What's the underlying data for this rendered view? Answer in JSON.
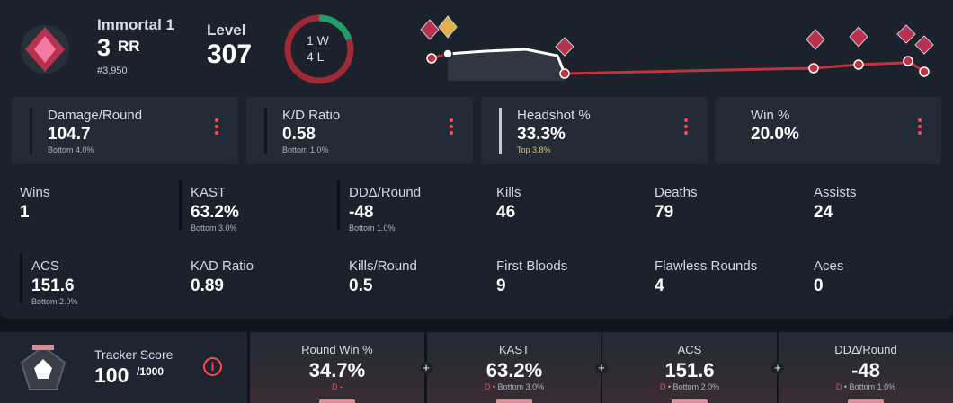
{
  "header": {
    "rank": "Immortal 1",
    "rr": "3",
    "rr_unit": "RR",
    "leaderboard": "#3,950",
    "level_label": "Level",
    "level": "307",
    "wins": "1 W",
    "losses": "4 L"
  },
  "cards": [
    {
      "label": "Damage/Round",
      "value": "104.7",
      "percentile": "Bottom 4.0%"
    },
    {
      "label": "K/D Ratio",
      "value": "0.58",
      "percentile": "Bottom 1.0%"
    },
    {
      "label": "Headshot %",
      "value": "33.3%",
      "percentile": "Top 3.8%"
    },
    {
      "label": "Win %",
      "value": "20.0%",
      "percentile": ""
    }
  ],
  "stats": [
    [
      {
        "label": "Wins",
        "value": "1"
      },
      {
        "label": "KAST",
        "value": "63.2%",
        "percentile": "Bottom 3.0%"
      },
      {
        "label": "DDΔ/Round",
        "value": "-48",
        "percentile": "Bottom 1.0%"
      },
      {
        "label": "Kills",
        "value": "46"
      },
      {
        "label": "Deaths",
        "value": "79"
      },
      {
        "label": "Assists",
        "value": "24"
      }
    ],
    [
      {
        "label": "ACS",
        "value": "151.6",
        "percentile": "Bottom 2.0%"
      },
      {
        "label": "KAD Ratio",
        "value": "0.89"
      },
      {
        "label": "Kills/Round",
        "value": "0.5"
      },
      {
        "label": "First Bloods",
        "value": "9"
      },
      {
        "label": "Flawless Rounds",
        "value": "4"
      },
      {
        "label": "Aces",
        "value": "0"
      }
    ]
  ],
  "tracker": {
    "label": "Tracker Score",
    "score": "100",
    "max": "/1000",
    "columns": [
      {
        "label": "Round Win %",
        "value": "34.7%",
        "grade": "D",
        "detail": "-"
      },
      {
        "label": "KAST",
        "value": "63.2%",
        "grade": "D",
        "detail": "• Bottom 3.0%"
      },
      {
        "label": "ACS",
        "value": "151.6",
        "grade": "D",
        "detail": "• Bottom 2.0%"
      },
      {
        "label": "DDΔ/Round",
        "value": "-48",
        "grade": "D",
        "detail": "• Bottom 1.0%"
      }
    ]
  }
}
